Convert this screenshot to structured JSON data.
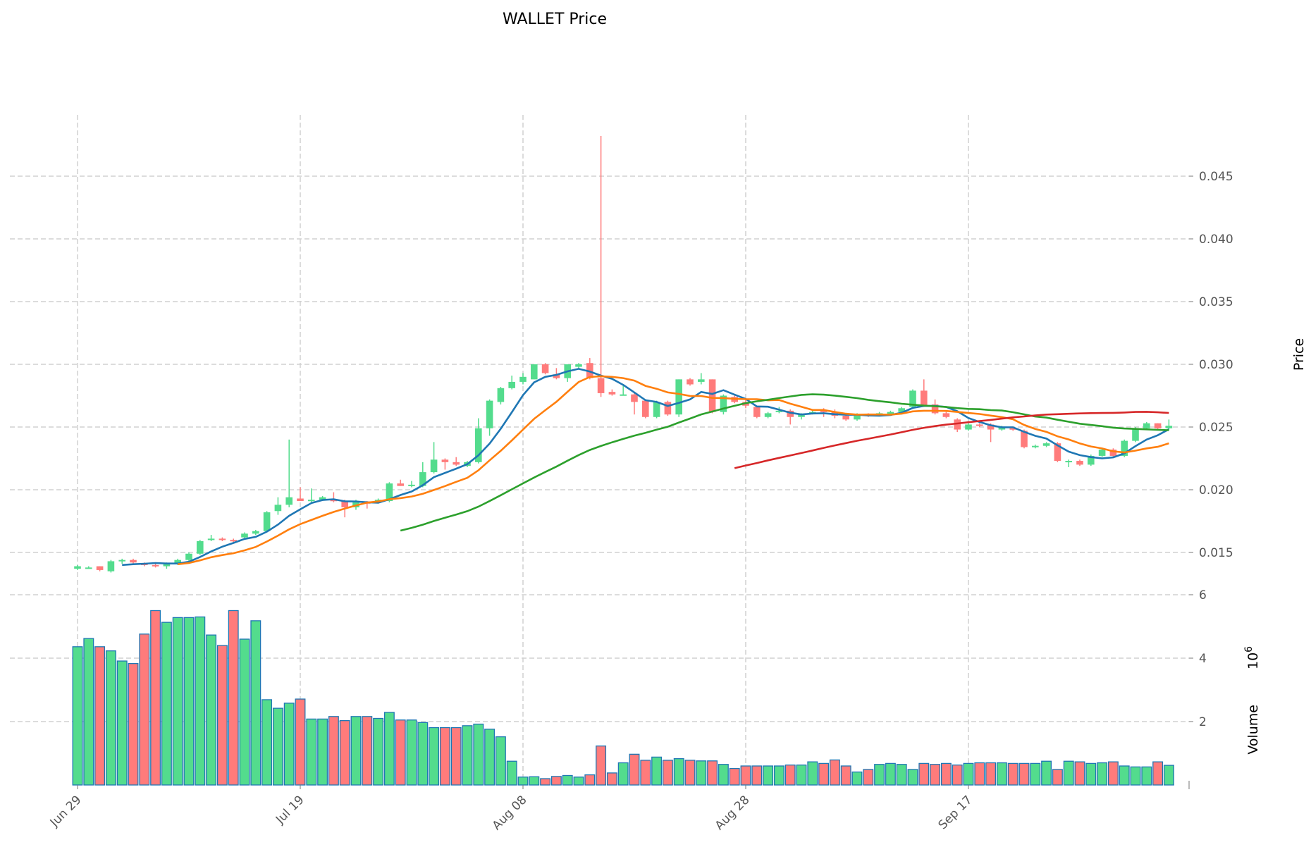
{
  "chart_data": {
    "type": "candlestick",
    "title": "WALLET Price",
    "ylabel": "Price",
    "volume_label": "Volume",
    "volume_exponent": "10",
    "volume_exponent_power": "6",
    "ylim": [
      0.012,
      0.0495
    ],
    "volume_ylim": [
      0,
      6.7
    ],
    "price_ticks": [
      "0.015",
      "0.020",
      "0.025",
      "0.030",
      "0.035",
      "0.040",
      "0.045"
    ],
    "volume_ticks": [
      "2",
      "4",
      "6"
    ],
    "x_ticks": [
      {
        "index": 0,
        "label": "Jun 29"
      },
      {
        "index": 20,
        "label": "Jul 19"
      },
      {
        "index": 40,
        "label": "Aug 08"
      },
      {
        "index": 60,
        "label": "Aug 28"
      },
      {
        "index": 80,
        "label": "Sep 17"
      }
    ],
    "grid": true,
    "colors": {
      "up": "#53dc8d",
      "down": "#ff7b7b",
      "volume_edge": "#1f77b4",
      "grid": "#d0d0d0"
    },
    "moving_averages": [
      {
        "window": 5,
        "color": "#1f77b4"
      },
      {
        "window": 10,
        "color": "#ff7f0e"
      },
      {
        "window": 30,
        "color": "#2ca02c"
      },
      {
        "window": 60,
        "color": "#d62728"
      }
    ],
    "ohlcv_columns": [
      "open",
      "high",
      "low",
      "close",
      "volume_millions"
    ],
    "ohlcv": [
      [
        0.0137,
        0.014,
        0.0136,
        0.0139,
        4.36
      ],
      [
        0.0138,
        0.0139,
        0.0137,
        0.0138,
        4.62
      ],
      [
        0.0139,
        0.0139,
        0.0135,
        0.0136,
        4.36
      ],
      [
        0.0135,
        0.0144,
        0.0134,
        0.0143,
        4.23
      ],
      [
        0.0143,
        0.0145,
        0.0141,
        0.0144,
        3.91
      ],
      [
        0.0144,
        0.0145,
        0.0141,
        0.0142,
        3.83
      ],
      [
        0.0141,
        0.0142,
        0.0139,
        0.014,
        4.76
      ],
      [
        0.014,
        0.0141,
        0.0138,
        0.0139,
        5.5
      ],
      [
        0.0139,
        0.0142,
        0.0137,
        0.0141,
        5.13
      ],
      [
        0.0141,
        0.0145,
        0.014,
        0.0144,
        5.28
      ],
      [
        0.0144,
        0.015,
        0.0143,
        0.0149,
        5.28
      ],
      [
        0.0149,
        0.016,
        0.0148,
        0.0159,
        5.3
      ],
      [
        0.016,
        0.0164,
        0.0159,
        0.0161,
        4.73
      ],
      [
        0.0161,
        0.0162,
        0.0159,
        0.016,
        4.4
      ],
      [
        0.016,
        0.0161,
        0.0158,
        0.0159,
        5.5
      ],
      [
        0.0162,
        0.0166,
        0.0161,
        0.0165,
        4.6
      ],
      [
        0.0165,
        0.0168,
        0.0164,
        0.0167,
        5.18
      ],
      [
        0.0167,
        0.0183,
        0.0166,
        0.0182,
        2.69
      ],
      [
        0.0183,
        0.0194,
        0.018,
        0.0188,
        2.42
      ],
      [
        0.0188,
        0.024,
        0.0186,
        0.0194,
        2.58
      ],
      [
        0.0193,
        0.0202,
        0.0191,
        0.0191,
        2.71
      ],
      [
        0.0191,
        0.0201,
        0.019,
        0.0192,
        2.08
      ],
      [
        0.0192,
        0.0195,
        0.0191,
        0.0194,
        2.08
      ],
      [
        0.0192,
        0.0198,
        0.019,
        0.0191,
        2.16
      ],
      [
        0.0191,
        0.0192,
        0.0178,
        0.0186,
        2.03
      ],
      [
        0.0186,
        0.0192,
        0.0184,
        0.019,
        2.16
      ],
      [
        0.019,
        0.0191,
        0.0185,
        0.0189,
        2.16
      ],
      [
        0.019,
        0.0193,
        0.0189,
        0.0192,
        2.1
      ],
      [
        0.0191,
        0.0206,
        0.019,
        0.0205,
        2.29
      ],
      [
        0.0205,
        0.0208,
        0.0203,
        0.0203,
        2.05
      ],
      [
        0.0203,
        0.0207,
        0.0202,
        0.0204,
        2.05
      ],
      [
        0.0203,
        0.0222,
        0.0202,
        0.0214,
        1.97
      ],
      [
        0.0214,
        0.0238,
        0.0213,
        0.0224,
        1.81
      ],
      [
        0.0224,
        0.0225,
        0.0216,
        0.0222,
        1.81
      ],
      [
        0.0222,
        0.0226,
        0.0219,
        0.022,
        1.81
      ],
      [
        0.0219,
        0.0223,
        0.0218,
        0.0222,
        1.87
      ],
      [
        0.0222,
        0.0257,
        0.0221,
        0.0249,
        1.92
      ],
      [
        0.0249,
        0.0272,
        0.0243,
        0.0271,
        1.76
      ],
      [
        0.027,
        0.0282,
        0.0268,
        0.0281,
        1.52
      ],
      [
        0.0281,
        0.0291,
        0.028,
        0.0286,
        0.75
      ],
      [
        0.0286,
        0.0293,
        0.0284,
        0.029,
        0.25
      ],
      [
        0.0288,
        0.03,
        0.0288,
        0.03,
        0.26
      ],
      [
        0.03,
        0.0301,
        0.0292,
        0.0293,
        0.2
      ],
      [
        0.0292,
        0.0297,
        0.0288,
        0.0289,
        0.27
      ],
      [
        0.0289,
        0.03,
        0.0286,
        0.03,
        0.3
      ],
      [
        0.0298,
        0.0301,
        0.0296,
        0.03,
        0.25
      ],
      [
        0.0301,
        0.0305,
        0.0288,
        0.0289,
        0.32
      ],
      [
        0.0289,
        0.0482,
        0.0274,
        0.0277,
        1.23
      ],
      [
        0.0278,
        0.028,
        0.0275,
        0.0276,
        0.38
      ],
      [
        0.0276,
        0.0283,
        0.0275,
        0.0276,
        0.7
      ],
      [
        0.0276,
        0.0277,
        0.026,
        0.027,
        0.97
      ],
      [
        0.0271,
        0.0271,
        0.0257,
        0.0258,
        0.78
      ],
      [
        0.0258,
        0.0271,
        0.0257,
        0.027,
        0.88
      ],
      [
        0.027,
        0.0271,
        0.0259,
        0.026,
        0.78
      ],
      [
        0.026,
        0.0288,
        0.0258,
        0.0288,
        0.83
      ],
      [
        0.0288,
        0.0289,
        0.0283,
        0.0284,
        0.78
      ],
      [
        0.0286,
        0.0293,
        0.0284,
        0.0288,
        0.76
      ],
      [
        0.0288,
        0.0288,
        0.0261,
        0.0262,
        0.76
      ],
      [
        0.0262,
        0.0276,
        0.026,
        0.0275,
        0.65
      ],
      [
        0.0274,
        0.0275,
        0.0269,
        0.027,
        0.52
      ],
      [
        0.027,
        0.0272,
        0.0265,
        0.0267,
        0.6
      ],
      [
        0.0266,
        0.0267,
        0.0257,
        0.0258,
        0.6
      ],
      [
        0.0258,
        0.0262,
        0.0257,
        0.0261,
        0.6
      ],
      [
        0.0262,
        0.0266,
        0.0261,
        0.0263,
        0.6
      ],
      [
        0.0263,
        0.0264,
        0.0252,
        0.0258,
        0.63
      ],
      [
        0.0258,
        0.0261,
        0.0256,
        0.026,
        0.63
      ],
      [
        0.0261,
        0.0264,
        0.026,
        0.0262,
        0.73
      ],
      [
        0.0263,
        0.0265,
        0.0258,
        0.0262,
        0.68
      ],
      [
        0.0262,
        0.0264,
        0.0257,
        0.0259,
        0.79
      ],
      [
        0.0259,
        0.026,
        0.0255,
        0.0256,
        0.6
      ],
      [
        0.0256,
        0.0261,
        0.0255,
        0.026,
        0.41
      ],
      [
        0.026,
        0.0261,
        0.0258,
        0.0259,
        0.49
      ],
      [
        0.026,
        0.0262,
        0.0259,
        0.0261,
        0.65
      ],
      [
        0.026,
        0.0263,
        0.0259,
        0.0262,
        0.68
      ],
      [
        0.0262,
        0.0266,
        0.0261,
        0.0265,
        0.65
      ],
      [
        0.0266,
        0.028,
        0.0265,
        0.0279,
        0.49
      ],
      [
        0.0279,
        0.0288,
        0.0266,
        0.0267,
        0.68
      ],
      [
        0.0268,
        0.0272,
        0.026,
        0.0261,
        0.65
      ],
      [
        0.0261,
        0.0262,
        0.0257,
        0.0258,
        0.68
      ],
      [
        0.0256,
        0.0257,
        0.0246,
        0.0248,
        0.63
      ],
      [
        0.0248,
        0.0253,
        0.0247,
        0.0252,
        0.68
      ],
      [
        0.0252,
        0.0253,
        0.025,
        0.0251,
        0.7
      ],
      [
        0.0252,
        0.0253,
        0.0238,
        0.0248,
        0.7
      ],
      [
        0.0248,
        0.0251,
        0.0247,
        0.025,
        0.7
      ],
      [
        0.0249,
        0.025,
        0.0247,
        0.0248,
        0.68
      ],
      [
        0.0247,
        0.0248,
        0.0233,
        0.0234,
        0.68
      ],
      [
        0.0234,
        0.0236,
        0.0233,
        0.0235,
        0.68
      ],
      [
        0.0235,
        0.0238,
        0.0234,
        0.0237,
        0.75
      ],
      [
        0.0237,
        0.0238,
        0.0222,
        0.0223,
        0.49
      ],
      [
        0.0222,
        0.0224,
        0.0218,
        0.0223,
        0.75
      ],
      [
        0.0223,
        0.0224,
        0.0219,
        0.022,
        0.73
      ],
      [
        0.022,
        0.0228,
        0.0219,
        0.0227,
        0.68
      ],
      [
        0.0227,
        0.0233,
        0.0226,
        0.0232,
        0.7
      ],
      [
        0.0232,
        0.0233,
        0.0226,
        0.0227,
        0.73
      ],
      [
        0.0227,
        0.024,
        0.0226,
        0.0239,
        0.6
      ],
      [
        0.0239,
        0.025,
        0.0238,
        0.0249,
        0.57
      ],
      [
        0.0249,
        0.0254,
        0.0248,
        0.0253,
        0.57
      ],
      [
        0.0253,
        0.0253,
        0.0248,
        0.0249,
        0.73
      ],
      [
        0.0249,
        0.0256,
        0.0248,
        0.0251,
        0.62
      ]
    ]
  }
}
